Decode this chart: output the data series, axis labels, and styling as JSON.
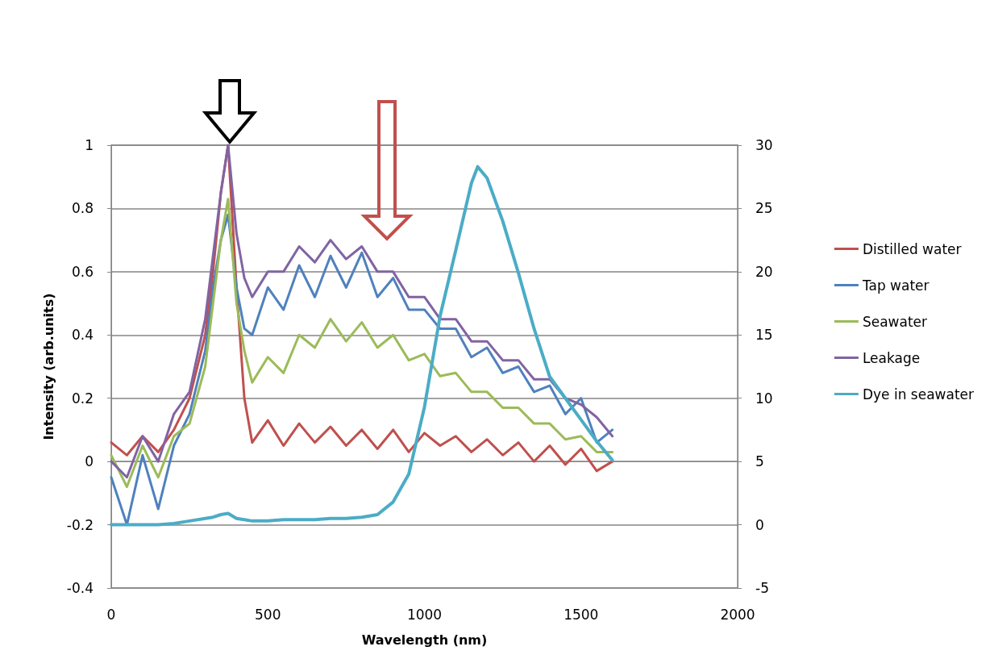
{
  "chart_data": {
    "type": "line",
    "xlabel": "Wavelength (nm)",
    "ylabel": "Intensity (arb.units)",
    "x": [
      0,
      50,
      100,
      150,
      200,
      250,
      300,
      325,
      350,
      373,
      400,
      425,
      450,
      500,
      550,
      600,
      650,
      700,
      750,
      800,
      850,
      900,
      950,
      1000,
      1050,
      1100,
      1150,
      1200,
      1250,
      1300,
      1350,
      1400,
      1450,
      1500,
      1550,
      1600
    ],
    "series": [
      {
        "name": "Distilled water",
        "color": "#c0504d",
        "values": [
          0.06,
          0.02,
          0.08,
          0.03,
          0.1,
          0.2,
          0.4,
          0.6,
          0.85,
          1.0,
          0.55,
          0.2,
          0.06,
          0.13,
          0.05,
          0.12,
          0.06,
          0.11,
          0.05,
          0.1,
          0.04,
          0.1,
          0.03,
          0.09,
          0.05,
          0.08,
          0.03,
          0.07,
          0.02,
          0.06,
          0.0,
          0.05,
          -0.01,
          0.04,
          -0.03,
          0.0
        ]
      },
      {
        "name": "Tap water",
        "color": "#4f81bd",
        "values": [
          -0.05,
          -0.2,
          0.02,
          -0.15,
          0.05,
          0.15,
          0.35,
          0.55,
          0.7,
          0.78,
          0.55,
          0.42,
          0.4,
          0.55,
          0.48,
          0.62,
          0.52,
          0.65,
          0.55,
          0.66,
          0.52,
          0.58,
          0.48,
          0.48,
          0.42,
          0.42,
          0.33,
          0.36,
          0.28,
          0.3,
          0.22,
          0.24,
          0.15,
          0.2,
          0.06,
          0.1
        ]
      },
      {
        "name": "Seawater",
        "color": "#9bbb59",
        "values": [
          0.02,
          -0.08,
          0.05,
          -0.05,
          0.08,
          0.12,
          0.3,
          0.5,
          0.7,
          0.83,
          0.5,
          0.35,
          0.25,
          0.33,
          0.28,
          0.4,
          0.36,
          0.45,
          0.38,
          0.44,
          0.36,
          0.4,
          0.32,
          0.34,
          0.27,
          0.28,
          0.22,
          0.22,
          0.17,
          0.17,
          0.12,
          0.12,
          0.07,
          0.08,
          0.03,
          0.03
        ]
      },
      {
        "name": "Leakage",
        "color": "#8064a2",
        "values": [
          0.0,
          -0.05,
          0.08,
          0.0,
          0.15,
          0.22,
          0.45,
          0.65,
          0.85,
          1.0,
          0.72,
          0.58,
          0.52,
          0.6,
          0.6,
          0.68,
          0.63,
          0.7,
          0.64,
          0.68,
          0.6,
          0.6,
          0.52,
          0.52,
          0.45,
          0.45,
          0.38,
          0.38,
          0.32,
          0.32,
          0.26,
          0.26,
          0.2,
          0.18,
          0.14,
          0.08
        ]
      },
      {
        "name": "Dye in seawater",
        "color": "#4bacc6",
        "axis": "y2",
        "x": [
          0,
          50,
          100,
          150,
          200,
          250,
          300,
          325,
          350,
          373,
          400,
          425,
          450,
          500,
          550,
          600,
          650,
          700,
          750,
          800,
          850,
          900,
          950,
          1000,
          1050,
          1100,
          1150,
          1170,
          1200,
          1250,
          1300,
          1350,
          1400,
          1450,
          1500,
          1550,
          1600
        ],
        "values": [
          0,
          0,
          0,
          0,
          0.1,
          0.3,
          0.5,
          0.6,
          0.8,
          0.9,
          0.5,
          0.4,
          0.3,
          0.3,
          0.4,
          0.4,
          0.4,
          0.5,
          0.5,
          0.6,
          0.8,
          1.8,
          4,
          9.3,
          16.5,
          21.7,
          27,
          28.3,
          27.4,
          24,
          19.9,
          15.5,
          11.7,
          10,
          8.3,
          6.6,
          5.1
        ]
      }
    ],
    "xlim": [
      0,
      2000
    ],
    "xticks": [
      0,
      500,
      1000,
      1500,
      2000
    ],
    "ylim": [
      -0.4,
      1
    ],
    "yticks": [
      -0.4,
      -0.2,
      0,
      0.2,
      0.4,
      0.6,
      0.8,
      1
    ],
    "y2lim": [
      -5,
      30
    ],
    "y2ticks": [
      -5,
      0,
      5,
      10,
      15,
      20,
      25,
      30
    ],
    "grid": "y",
    "legend": "right",
    "marker": "none",
    "line_style": "solid"
  }
}
